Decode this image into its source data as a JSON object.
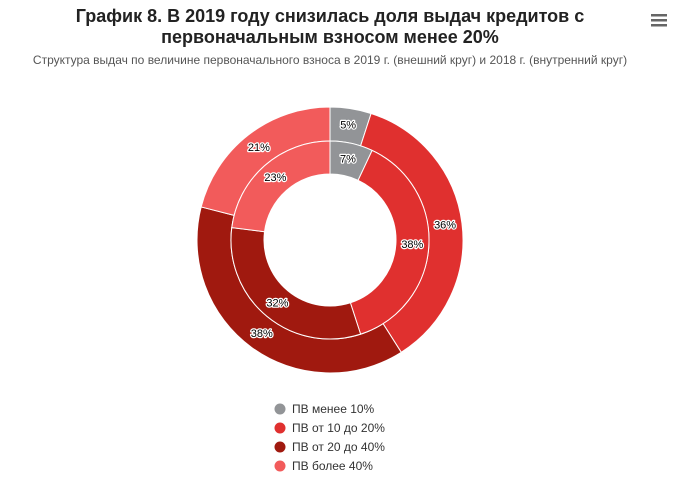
{
  "chart_data": {
    "type": "donut",
    "title": [
      "График 8. В 2019 году снизилась доля выдач кредитов с",
      "первоначальным взносом менее 20%"
    ],
    "subtitle": "Структура выдач по величине первоначального взноса в 2019 г. (внешний круг) и 2018 г. (внутренний круг)",
    "categories": [
      "ПВ менее 10%",
      "ПВ от 10 до 20%",
      "ПВ от 20 до 40%",
      "ПВ более 40%"
    ],
    "colors": [
      "#929497",
      "#e0302f",
      "#a0190f",
      "#f25b5b"
    ],
    "series": [
      {
        "values": [
          5,
          36,
          38,
          21
        ],
        "value_labels": [
          "5%",
          "36%",
          "38%",
          "21%"
        ]
      },
      {
        "values": [
          7,
          38,
          32,
          23
        ],
        "value_labels": [
          "7%",
          "38%",
          "32%",
          "23%"
        ]
      }
    ]
  }
}
